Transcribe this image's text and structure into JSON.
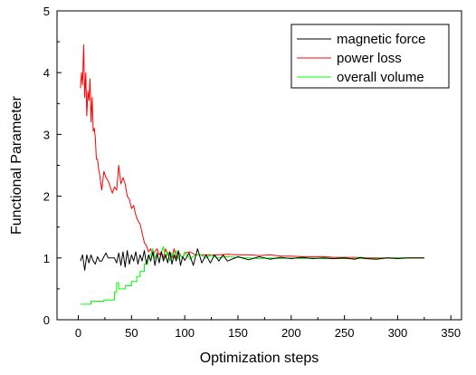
{
  "chart_data": {
    "type": "line",
    "xlabel": "Optimization steps",
    "ylabel": "Functional Parameter",
    "xlim": [
      -20,
      360
    ],
    "ylim": [
      0,
      5
    ],
    "x_ticks": [
      0,
      50,
      100,
      150,
      200,
      250,
      300,
      350
    ],
    "y_ticks": [
      0,
      1,
      2,
      3,
      4,
      5
    ],
    "grid": false,
    "legend_position": "top-right",
    "series": [
      {
        "name": "magnetic force",
        "color": "#000000",
        "points": [
          [
            2,
            0.95
          ],
          [
            4,
            1.05
          ],
          [
            6,
            0.8
          ],
          [
            8,
            1.05
          ],
          [
            10,
            0.92
          ],
          [
            12,
            1.05
          ],
          [
            14,
            0.95
          ],
          [
            16,
            0.9
          ],
          [
            18,
            1.02
          ],
          [
            20,
            0.95
          ],
          [
            22,
            0.95
          ],
          [
            24,
            1.02
          ],
          [
            26,
            1.08
          ],
          [
            28,
            1.0
          ],
          [
            30,
            1.0
          ],
          [
            32,
            1.0
          ],
          [
            34,
            1.0
          ],
          [
            36,
            0.92
          ],
          [
            38,
            1.08
          ],
          [
            40,
            0.88
          ],
          [
            42,
            1.1
          ],
          [
            44,
            0.85
          ],
          [
            46,
            1.12
          ],
          [
            48,
            0.9
          ],
          [
            50,
            1.05
          ],
          [
            52,
            0.95
          ],
          [
            54,
            1.1
          ],
          [
            56,
            0.9
          ],
          [
            58,
            1.05
          ],
          [
            60,
            0.95
          ],
          [
            62,
            1.12
          ],
          [
            64,
            0.9
          ],
          [
            66,
            1.05
          ],
          [
            68,
            0.95
          ],
          [
            70,
            1.1
          ],
          [
            72,
            0.88
          ],
          [
            74,
            1.08
          ],
          [
            76,
            0.92
          ],
          [
            78,
            1.1
          ],
          [
            80,
            0.95
          ],
          [
            82,
            1.05
          ],
          [
            84,
            0.92
          ],
          [
            86,
            1.1
          ],
          [
            88,
            0.9
          ],
          [
            90,
            1.05
          ],
          [
            92,
            0.95
          ],
          [
            94,
            1.12
          ],
          [
            96,
            0.88
          ],
          [
            98,
            1.02
          ],
          [
            100,
            0.96
          ],
          [
            104,
            1.08
          ],
          [
            108,
            0.88
          ],
          [
            112,
            1.15
          ],
          [
            116,
            0.92
          ],
          [
            120,
            1.05
          ],
          [
            124,
            0.92
          ],
          [
            128,
            1.05
          ],
          [
            132,
            0.95
          ],
          [
            136,
            1.05
          ],
          [
            140,
            0.95
          ],
          [
            150,
            1.02
          ],
          [
            160,
            0.97
          ],
          [
            170,
            1.02
          ],
          [
            180,
            0.98
          ],
          [
            190,
            1.01
          ],
          [
            200,
            0.99
          ],
          [
            210,
            1.01
          ],
          [
            220,
            0.99
          ],
          [
            230,
            1.0
          ],
          [
            240,
            0.99
          ],
          [
            250,
            1.0
          ],
          [
            260,
            0.98
          ],
          [
            265,
            1.01
          ],
          [
            270,
            0.99
          ],
          [
            280,
            0.98
          ],
          [
            290,
            1.0
          ],
          [
            300,
            0.99
          ],
          [
            310,
            1.0
          ],
          [
            325,
            1.0
          ]
        ]
      },
      {
        "name": "power loss",
        "color": "#ff0000",
        "points": [
          [
            2,
            3.75
          ],
          [
            3,
            4.0
          ],
          [
            4,
            3.8
          ],
          [
            5,
            4.45
          ],
          [
            6,
            3.6
          ],
          [
            7,
            4.0
          ],
          [
            8,
            3.3
          ],
          [
            9,
            3.7
          ],
          [
            10,
            3.55
          ],
          [
            11,
            3.9
          ],
          [
            12,
            3.2
          ],
          [
            13,
            3.6
          ],
          [
            14,
            3.05
          ],
          [
            15,
            3.1
          ],
          [
            16,
            2.95
          ],
          [
            17,
            2.6
          ],
          [
            18,
            2.6
          ],
          [
            19,
            2.45
          ],
          [
            20,
            2.35
          ],
          [
            22,
            2.1
          ],
          [
            24,
            2.4
          ],
          [
            26,
            2.3
          ],
          [
            28,
            2.25
          ],
          [
            30,
            2.15
          ],
          [
            32,
            2.05
          ],
          [
            34,
            2.15
          ],
          [
            36,
            2.1
          ],
          [
            38,
            2.5
          ],
          [
            40,
            2.2
          ],
          [
            42,
            2.3
          ],
          [
            44,
            2.2
          ],
          [
            46,
            2.0
          ],
          [
            48,
            1.95
          ],
          [
            50,
            1.8
          ],
          [
            52,
            1.85
          ],
          [
            54,
            1.7
          ],
          [
            56,
            1.6
          ],
          [
            58,
            1.55
          ],
          [
            60,
            1.4
          ],
          [
            62,
            1.25
          ],
          [
            64,
            1.2
          ],
          [
            66,
            1.1
          ],
          [
            68,
            1.15
          ],
          [
            70,
            1.05
          ],
          [
            72,
            1.1
          ],
          [
            74,
            1.15
          ],
          [
            76,
            1.05
          ],
          [
            78,
            1.1
          ],
          [
            80,
            1.0
          ],
          [
            82,
            1.15
          ],
          [
            84,
            1.05
          ],
          [
            86,
            1.1
          ],
          [
            88,
            1.0
          ],
          [
            90,
            1.15
          ],
          [
            92,
            1.0
          ],
          [
            94,
            1.1
          ],
          [
            96,
            1.05
          ],
          [
            98,
            1.0
          ],
          [
            100,
            1.08
          ],
          [
            105,
            1.1
          ],
          [
            110,
            1.05
          ],
          [
            115,
            1.05
          ],
          [
            120,
            1.05
          ],
          [
            130,
            1.05
          ],
          [
            140,
            1.06
          ],
          [
            150,
            1.05
          ],
          [
            160,
            1.05
          ],
          [
            170,
            1.04
          ],
          [
            180,
            1.05
          ],
          [
            190,
            1.03
          ],
          [
            200,
            1.03
          ],
          [
            210,
            1.02
          ],
          [
            220,
            1.02
          ],
          [
            230,
            1.02
          ],
          [
            240,
            1.01
          ],
          [
            250,
            1.01
          ],
          [
            260,
            1.01
          ],
          [
            270,
            1.0
          ],
          [
            280,
            1.0
          ],
          [
            290,
            1.0
          ],
          [
            300,
            1.0
          ],
          [
            310,
            1.0
          ],
          [
            325,
            1.0
          ]
        ]
      },
      {
        "name": "overall volume",
        "color": "#00ff00",
        "points": [
          [
            2,
            0.25
          ],
          [
            12,
            0.25
          ],
          [
            12,
            0.3
          ],
          [
            24,
            0.3
          ],
          [
            24,
            0.32
          ],
          [
            34,
            0.32
          ],
          [
            34,
            0.45
          ],
          [
            36,
            0.45
          ],
          [
            36,
            0.6
          ],
          [
            38,
            0.6
          ],
          [
            38,
            0.5
          ],
          [
            44,
            0.5
          ],
          [
            44,
            0.55
          ],
          [
            50,
            0.55
          ],
          [
            50,
            0.62
          ],
          [
            55,
            0.62
          ],
          [
            55,
            0.7
          ],
          [
            58,
            0.7
          ],
          [
            58,
            0.78
          ],
          [
            62,
            0.78
          ],
          [
            62,
            0.9
          ],
          [
            65,
            0.9
          ],
          [
            66,
            1.0
          ],
          [
            68,
            1.05
          ],
          [
            70,
            1.15
          ],
          [
            72,
            1.0
          ],
          [
            74,
            1.05
          ],
          [
            76,
            0.95
          ],
          [
            78,
            1.1
          ],
          [
            80,
            1.18
          ],
          [
            82,
            1.0
          ],
          [
            84,
            1.1
          ],
          [
            86,
            0.95
          ],
          [
            88,
            1.08
          ],
          [
            90,
            1.0
          ],
          [
            92,
            1.12
          ],
          [
            94,
            0.98
          ],
          [
            96,
            1.05
          ],
          [
            98,
            1.0
          ],
          [
            100,
            1.1
          ],
          [
            105,
            0.98
          ],
          [
            110,
            1.05
          ],
          [
            115,
            1.05
          ],
          [
            120,
            1.0
          ],
          [
            125,
            1.05
          ],
          [
            130,
            1.0
          ],
          [
            140,
            1.02
          ],
          [
            150,
            1.01
          ],
          [
            160,
            1.0
          ],
          [
            170,
            0.99
          ],
          [
            180,
            1.0
          ],
          [
            190,
            0.99
          ],
          [
            200,
            1.0
          ],
          [
            210,
            0.99
          ],
          [
            220,
            1.0
          ],
          [
            230,
            0.99
          ],
          [
            240,
            0.99
          ],
          [
            250,
            0.99
          ],
          [
            260,
            0.99
          ],
          [
            270,
            0.99
          ],
          [
            280,
            0.99
          ],
          [
            290,
            1.0
          ],
          [
            300,
            1.0
          ],
          [
            310,
            1.0
          ],
          [
            325,
            1.0
          ]
        ]
      }
    ]
  }
}
